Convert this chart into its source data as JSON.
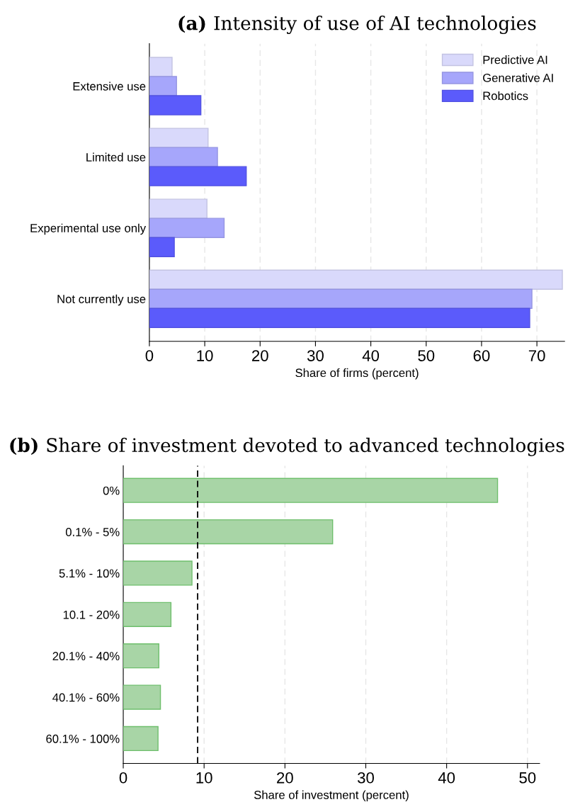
{
  "chart_data": [
    {
      "type": "bar",
      "orientation": "horizontal",
      "title": "(a) Intensity of use of AI technologies",
      "xlabel": "Share of firms (percent)",
      "categories": [
        "Extensive use",
        "Limited use",
        "Experimental use only",
        "Not currently use"
      ],
      "series": [
        {
          "name": "Predictive AI",
          "color": "#d9d9fb",
          "values": [
            4.1,
            10.6,
            10.4,
            74.6
          ]
        },
        {
          "name": "Generative AI",
          "color": "#a6a6fb",
          "values": [
            4.9,
            12.3,
            13.5,
            69.1
          ]
        },
        {
          "name": "Robotics",
          "color": "#5b5bfb",
          "values": [
            9.3,
            17.5,
            4.5,
            68.7
          ]
        }
      ],
      "xlim": [
        0,
        75
      ],
      "xticks": [
        0,
        10,
        20,
        30,
        40,
        50,
        60,
        70
      ],
      "grid": "x",
      "legend": "top right"
    },
    {
      "type": "bar",
      "orientation": "horizontal",
      "title": "(b) Share of investment devoted to advanced technologies",
      "xlabel": "Share of investment (percent)",
      "categories": [
        "0%",
        "0.1% - 5%",
        "5.1% - 10%",
        "10.1 - 20%",
        "20.1% - 40%",
        "40.1% - 60%",
        "60.1% - 100%"
      ],
      "series": [
        {
          "color": "#a8d5a6",
          "values": [
            46.3,
            25.9,
            8.5,
            5.9,
            4.4,
            4.6,
            4.3
          ]
        }
      ],
      "xlim": [
        0,
        51.5
      ],
      "xticks": [
        0,
        10,
        20,
        30,
        40,
        50
      ],
      "grid": "x",
      "ref_lines": [
        {
          "axis": "x",
          "value": 9.2,
          "color": "#000000",
          "line_style": "dashed"
        }
      ]
    }
  ]
}
